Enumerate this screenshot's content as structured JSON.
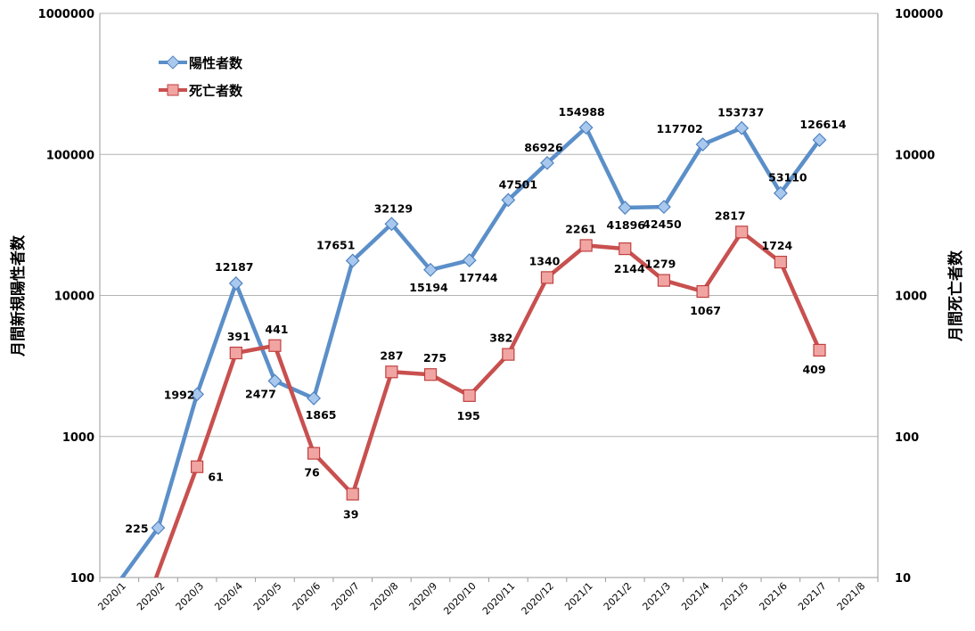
{
  "chart_data": {
    "type": "line",
    "log_scale": true,
    "grid": true,
    "legend_position": "top-left",
    "categories": [
      "2020/1",
      "2020/2",
      "2020/3",
      "2020/4",
      "2020/5",
      "2020/6",
      "2020/7",
      "2020/8",
      "2020/9",
      "2020/10",
      "2020/11",
      "2020/12",
      "2021/1",
      "2021/2",
      "2021/3",
      "2021/4",
      "2021/5",
      "2021/6",
      "2021/7",
      "2021/8"
    ],
    "y_left": {
      "label": "月間新規陽性者数",
      "ticks": [
        "100",
        "1000",
        "10000",
        "100000",
        "1000000"
      ],
      "range": [
        100,
        1000000
      ]
    },
    "y_right": {
      "label": "月間死亡者数",
      "ticks": [
        "10",
        "100",
        "1000",
        "10000",
        "100000"
      ],
      "range": [
        10,
        100000
      ]
    },
    "series": [
      {
        "name": "陽性者数",
        "axis": "left",
        "color": "#5b8fc9",
        "marker": "diamond",
        "values": [
          null,
          225,
          1992,
          12187,
          2477,
          1865,
          17651,
          32129,
          15194,
          17744,
          47501,
          86926,
          154988,
          41896,
          42450,
          117702,
          153737,
          53110,
          126614,
          null
        ],
        "labels": [
          null,
          "225",
          "1992",
          "12187",
          "2477",
          "1865",
          "17651",
          "32129",
          "15194",
          "17744",
          "47501",
          "86926",
          "154988",
          "41896",
          "42450",
          "117702",
          "153737",
          "53110",
          "126614",
          null
        ]
      },
      {
        "name": "死亡者数",
        "axis": "right",
        "color": "#c8504f",
        "marker": "square",
        "values": [
          null,
          null,
          61,
          391,
          441,
          76,
          39,
          287,
          275,
          195,
          382,
          1340,
          2261,
          2144,
          1279,
          1067,
          2817,
          1724,
          409,
          null
        ],
        "labels": [
          null,
          null,
          "61",
          "391",
          "441",
          "76",
          "39",
          "287",
          "275",
          "195",
          "382",
          "1340",
          "2261",
          "2144",
          "1279",
          "1067",
          "2817",
          "1724",
          "409",
          null
        ]
      }
    ]
  }
}
